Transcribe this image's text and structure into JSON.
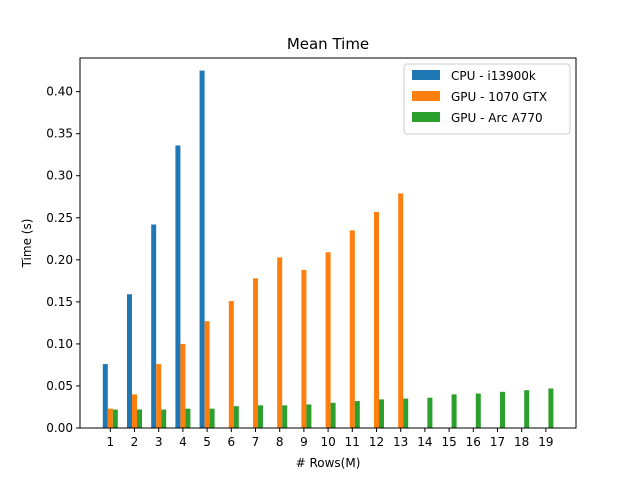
{
  "chart_data": {
    "type": "bar",
    "title": "Mean Time",
    "xlabel": "# Rows(M)",
    "ylabel": "Time (s)",
    "categories": [
      "1",
      "2",
      "3",
      "4",
      "5",
      "6",
      "7",
      "8",
      "9",
      "10",
      "11",
      "12",
      "13",
      "14",
      "15",
      "16",
      "17",
      "18",
      "19"
    ],
    "ylim": [
      0,
      0.44
    ],
    "yticks": [
      0.0,
      0.05,
      0.1,
      0.15,
      0.2,
      0.25,
      0.3,
      0.35,
      0.4
    ],
    "ytick_labels": [
      "0.00",
      "0.05",
      "0.10",
      "0.15",
      "0.20",
      "0.25",
      "0.30",
      "0.35",
      "0.40"
    ],
    "grid": false,
    "legend_position": "top-right",
    "series": [
      {
        "name": "CPU - i13900k",
        "color": "#1f77b4",
        "values": [
          0.076,
          0.159,
          0.242,
          0.336,
          0.425,
          null,
          null,
          null,
          null,
          null,
          null,
          null,
          null,
          null,
          null,
          null,
          null,
          null,
          null
        ]
      },
      {
        "name": "GPU - 1070 GTX",
        "color": "#ff7f0e",
        "values": [
          0.023,
          0.04,
          0.076,
          0.1,
          0.127,
          0.151,
          0.178,
          0.203,
          0.188,
          0.209,
          0.235,
          0.257,
          0.279,
          null,
          null,
          null,
          null,
          null,
          null
        ]
      },
      {
        "name": "GPU - Arc A770",
        "color": "#2ca02c",
        "values": [
          0.022,
          0.022,
          0.022,
          0.023,
          0.023,
          0.026,
          0.027,
          0.027,
          0.028,
          0.03,
          0.032,
          0.034,
          0.035,
          0.036,
          0.04,
          0.041,
          0.043,
          0.045,
          0.047
        ]
      }
    ]
  }
}
